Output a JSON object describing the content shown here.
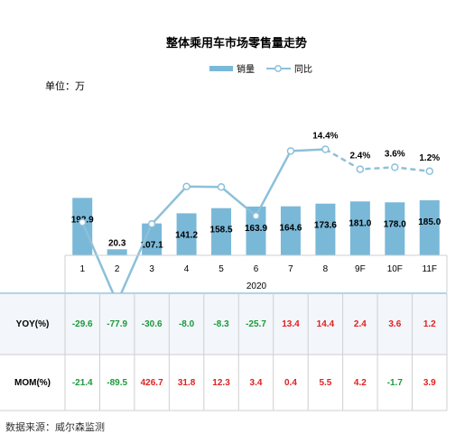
{
  "chart_data": {
    "type": "bar",
    "title": "整体乘用车市场零售量走势",
    "unit_label": "单位：万",
    "source": "数据来源：威尔森监测",
    "year_label": "2020",
    "categories": [
      "1",
      "2",
      "3",
      "4",
      "5",
      "6",
      "7",
      "8",
      "9F",
      "10F",
      "11F"
    ],
    "series": [
      {
        "name": "销量",
        "type": "bar",
        "color": "#7ab8d8",
        "values": [
          192.9,
          20.3,
          107.1,
          141.2,
          158.5,
          163.9,
          164.6,
          173.6,
          181.0,
          178.0,
          185.0
        ],
        "labels": [
          "192.9",
          "20.3",
          "107.1",
          "141.2",
          "158.5",
          "163.9",
          "164.6",
          "173.6",
          "181.0",
          "178.0",
          "185.0"
        ]
      },
      {
        "name": "同比",
        "type": "line",
        "color": "#8cc0da",
        "values": [
          -29.6,
          -77.9,
          -30.6,
          -8.0,
          -8.3,
          -25.7,
          13.4,
          14.4,
          2.4,
          3.6,
          1.2
        ],
        "labels": [
          "",
          "",
          "",
          "",
          "",
          "",
          "",
          "14.4%",
          "2.4%",
          "3.6%",
          "1.2%"
        ],
        "dashed_from_index": 7
      }
    ],
    "table": {
      "rows": [
        {
          "label": "YOY(%)",
          "values": [
            "-29.6",
            "-77.9",
            "-30.6",
            "-8.0",
            "-8.3",
            "-25.7",
            "13.4",
            "14.4",
            "2.4",
            "3.6",
            "1.2"
          ]
        },
        {
          "label": "MOM(%)",
          "values": [
            "-21.4",
            "-89.5",
            "426.7",
            "31.8",
            "12.3",
            "3.4",
            "0.4",
            "5.5",
            "4.2",
            "-1.7",
            "3.9"
          ]
        }
      ],
      "positive_color": "#e02020",
      "negative_color": "#1a9a3a"
    }
  }
}
